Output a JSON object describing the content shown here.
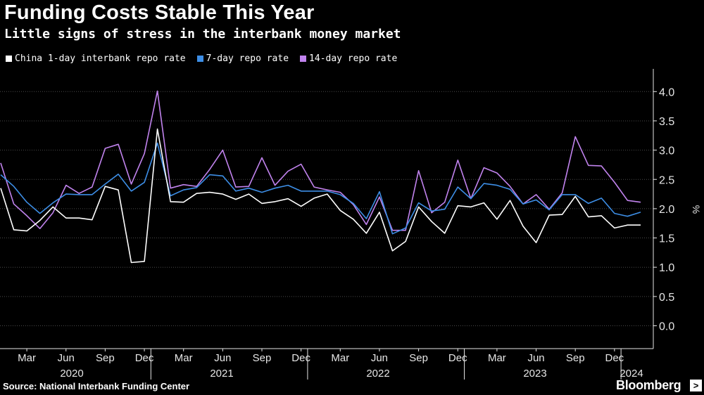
{
  "header": {
    "title": "Funding Costs Stable This Year",
    "subtitle": "Little signs of stress in the interbank money market"
  },
  "footer": {
    "source": "Source: National Interbank Funding Center",
    "brand": "Bloomberg",
    "brand_icon": "bloomberg-terminal-icon"
  },
  "colors": {
    "background": "#000000",
    "grid": "#4a4a4a",
    "axis_text": "#e6e6e6"
  },
  "chart_data": {
    "type": "line",
    "ylabel": "%",
    "ylim": [
      -0.4,
      4.4
    ],
    "yticks": [
      "0.0",
      "0.5",
      "1.0",
      "1.5",
      "2.0",
      "2.5",
      "3.0",
      "3.5",
      "4.0"
    ],
    "yaxis_side": "right",
    "grid": true,
    "legend_position": "top-left",
    "x_tick_labels": [
      "Mar",
      "Jun",
      "Sep",
      "Dec",
      "Mar",
      "Jun",
      "Sep",
      "Dec",
      "Mar",
      "Jun",
      "Sep",
      "Dec",
      "Mar",
      "Jun",
      "Sep",
      "Dec"
    ],
    "x_tick_months": [
      "2020-03",
      "2020-06",
      "2020-09",
      "2020-12",
      "2021-03",
      "2021-06",
      "2021-09",
      "2021-12",
      "2022-03",
      "2022-06",
      "2022-09",
      "2022-12",
      "2023-03",
      "2023-06",
      "2023-09",
      "2023-12"
    ],
    "year_labels": [
      "2020",
      "2021",
      "2022",
      "2023",
      "2024"
    ],
    "x": [
      "2020-01",
      "2020-02",
      "2020-03",
      "2020-04",
      "2020-05",
      "2020-06",
      "2020-07",
      "2020-08",
      "2020-09",
      "2020-10",
      "2020-11",
      "2020-12",
      "2021-01",
      "2021-02",
      "2021-03",
      "2021-04",
      "2021-05",
      "2021-06",
      "2021-07",
      "2021-08",
      "2021-09",
      "2021-10",
      "2021-11",
      "2021-12",
      "2022-01",
      "2022-02",
      "2022-03",
      "2022-04",
      "2022-05",
      "2022-06",
      "2022-07",
      "2022-08",
      "2022-09",
      "2022-10",
      "2022-11",
      "2022-12",
      "2023-01",
      "2023-02",
      "2023-03",
      "2023-04",
      "2023-05",
      "2023-06",
      "2023-07",
      "2023-08",
      "2023-09",
      "2023-10",
      "2023-11",
      "2023-12",
      "2024-01",
      "2024-02"
    ],
    "series": [
      {
        "name": "China 1-day interbank repo rate",
        "color": "#ffffff",
        "values": [
          2.35,
          1.64,
          1.62,
          1.8,
          2.03,
          1.84,
          1.84,
          1.81,
          2.38,
          2.32,
          1.08,
          1.1,
          3.36,
          2.12,
          2.11,
          2.26,
          2.28,
          2.25,
          2.16,
          2.25,
          2.09,
          2.12,
          2.17,
          2.04,
          2.18,
          2.25,
          1.97,
          1.82,
          1.58,
          1.94,
          1.28,
          1.44,
          2.03,
          1.78,
          1.58,
          2.05,
          2.03,
          2.1,
          1.82,
          2.14,
          1.7,
          1.42,
          1.89,
          1.9,
          2.21,
          1.86,
          1.88,
          1.67,
          1.72,
          1.72
        ]
      },
      {
        "name": "7-day repo rate",
        "color": "#3d8ee6",
        "values": [
          2.58,
          2.38,
          2.11,
          1.92,
          2.1,
          2.25,
          2.24,
          2.24,
          2.42,
          2.59,
          2.3,
          2.45,
          3.12,
          2.22,
          2.32,
          2.36,
          2.58,
          2.56,
          2.3,
          2.35,
          2.28,
          2.35,
          2.4,
          2.3,
          2.3,
          2.3,
          2.24,
          2.09,
          1.83,
          2.29,
          1.57,
          1.67,
          2.1,
          1.96,
          1.99,
          2.37,
          2.17,
          2.43,
          2.4,
          2.33,
          2.08,
          2.15,
          1.98,
          2.24,
          2.24,
          2.09,
          2.18,
          1.92,
          1.87,
          1.94
        ]
      },
      {
        "name": "14-day repo rate",
        "color": "#c183ee",
        "values": [
          2.78,
          2.08,
          1.88,
          1.66,
          1.93,
          2.4,
          2.26,
          2.37,
          3.03,
          3.1,
          2.42,
          2.94,
          4.01,
          2.35,
          2.41,
          2.38,
          2.67,
          3.0,
          2.37,
          2.38,
          2.87,
          2.4,
          2.64,
          2.76,
          2.37,
          2.32,
          2.28,
          2.07,
          1.73,
          2.2,
          1.63,
          1.63,
          2.65,
          1.93,
          2.11,
          2.83,
          2.17,
          2.7,
          2.61,
          2.38,
          2.08,
          2.24,
          1.99,
          2.27,
          3.23,
          2.74,
          2.73,
          2.45,
          2.14,
          2.11
        ]
      }
    ]
  }
}
